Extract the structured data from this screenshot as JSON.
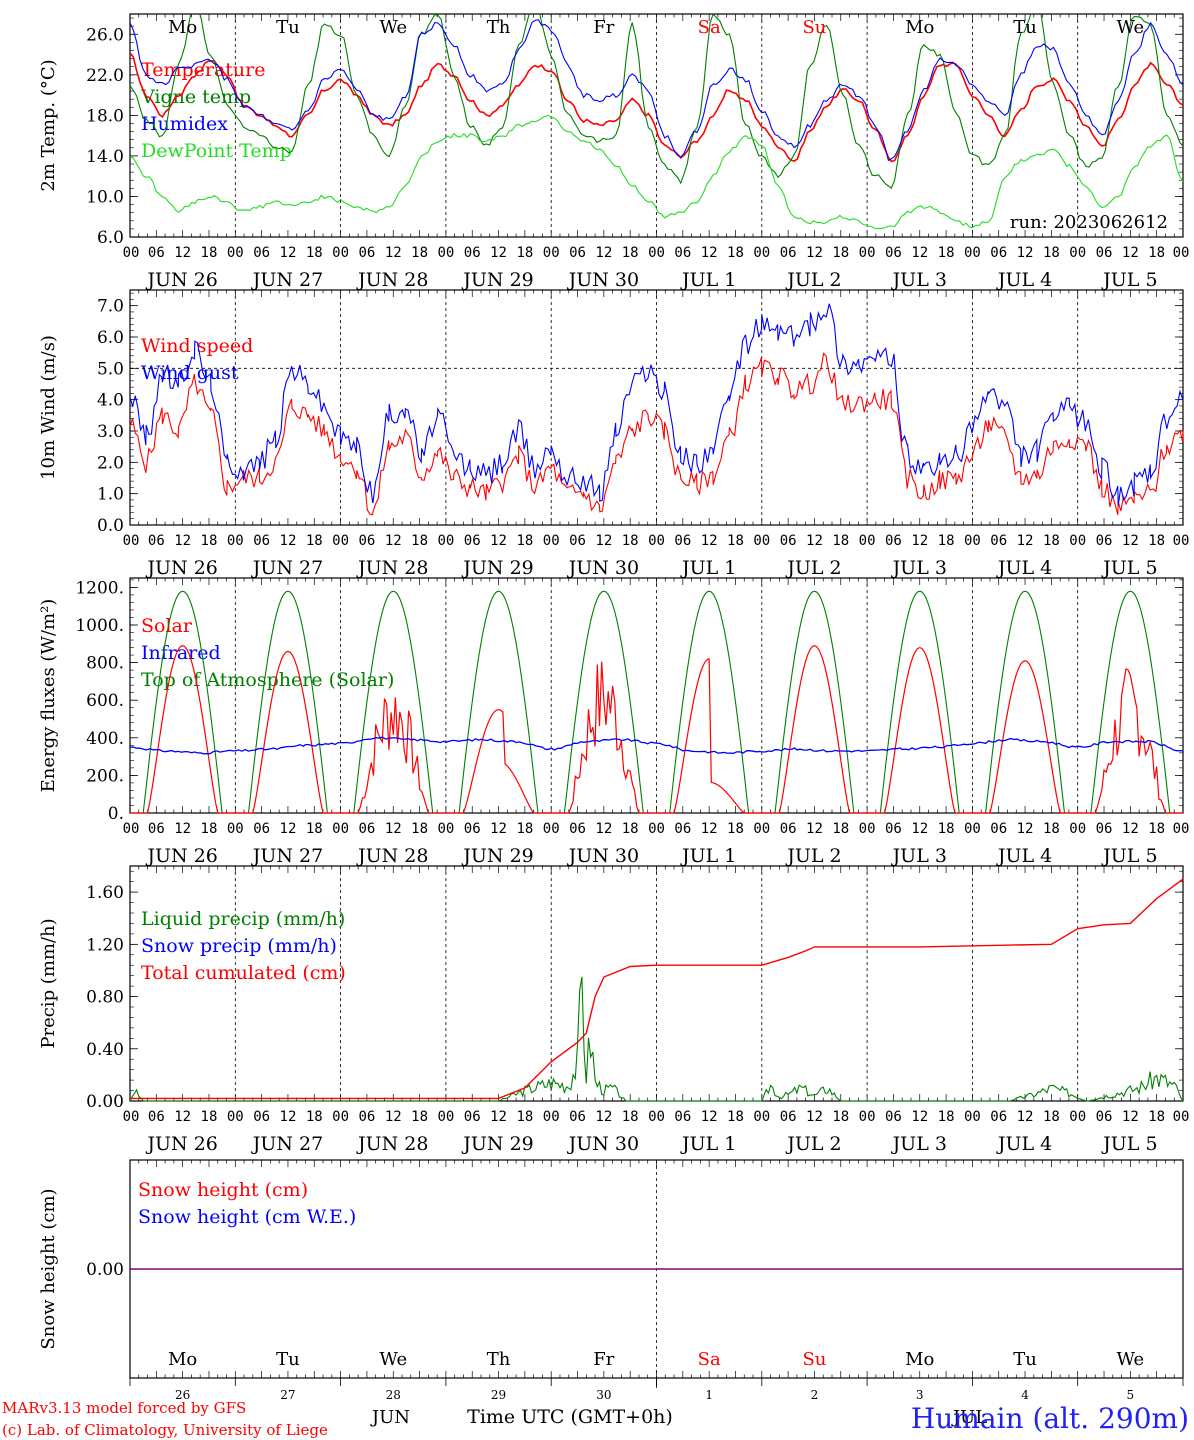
{
  "chart_data": [
    {
      "type": "line",
      "ylabel": "2m Temp. (°C)",
      "ylim": [
        6,
        28
      ],
      "yticks": [
        "6.0",
        "10.0",
        "14.0",
        "18.0",
        "22.0",
        "26.0"
      ],
      "legend": [
        {
          "label": "Temperature",
          "color": "#ff0000"
        },
        {
          "label": "Vigne temp",
          "color": "#008000"
        },
        {
          "label": "Humidex",
          "color": "#0000ff"
        },
        {
          "label": "DewPoint Temp",
          "color": "#22dd22"
        }
      ],
      "run_label": "run: 2023062612",
      "series": [
        {
          "name": "Temperature",
          "color": "#ff0000",
          "values": [
            24,
            20,
            18,
            20,
            22,
            23.5,
            22,
            19,
            18,
            17,
            16,
            18,
            20.5,
            21.5,
            20,
            18,
            17,
            18,
            21,
            23,
            22,
            19.5,
            18,
            19,
            21,
            23,
            22.5,
            19.5,
            17.5,
            17,
            17.5,
            19.5,
            18,
            15,
            14,
            15.5,
            18,
            20.5,
            19.5,
            17,
            15,
            13.5,
            16.5,
            19,
            20.5,
            19.5,
            16.5,
            13.5,
            16,
            20,
            23,
            23,
            20,
            18,
            16,
            18.5,
            21,
            21.5,
            19.5,
            17,
            15,
            17.5,
            21,
            23,
            21,
            19
          ]
        },
        {
          "name": "Vigne temp",
          "color": "#008000",
          "values": [
            21,
            17.5,
            16,
            23,
            29,
            24,
            19,
            17,
            16,
            15,
            14.5,
            21,
            27,
            26,
            20,
            16,
            14,
            19,
            26,
            28,
            22,
            17,
            15,
            17,
            25,
            29,
            24,
            18,
            16,
            15.5,
            16,
            27,
            17,
            13,
            11.5,
            17,
            28,
            26,
            17,
            14,
            12,
            14,
            23,
            27,
            20,
            15,
            12,
            11,
            18,
            25,
            24,
            18,
            14,
            13,
            16,
            26,
            29,
            21,
            16,
            13,
            14,
            21,
            28,
            27,
            18,
            15
          ]
        },
        {
          "name": "Humidex",
          "color": "#0000ff",
          "values": [
            27,
            22,
            21,
            22.5,
            23,
            23.5,
            21.5,
            19,
            18,
            17,
            16.5,
            18.5,
            21.5,
            22.5,
            20.5,
            18,
            17.5,
            20,
            26,
            27,
            25,
            22,
            20.5,
            21,
            24.5,
            27.5,
            26.5,
            23,
            20,
            19.5,
            20,
            22,
            20.5,
            16,
            14,
            16.5,
            21,
            22.5,
            21.5,
            18.5,
            16,
            15,
            17,
            19.5,
            21,
            20,
            17,
            13.5,
            16.5,
            20.5,
            23.5,
            23,
            21,
            19.5,
            18,
            22,
            25,
            24.5,
            21,
            18,
            16,
            19.5,
            24,
            27,
            24,
            21
          ]
        },
        {
          "name": "DewPoint Temp",
          "color": "#22dd22",
          "values": [
            14,
            12,
            10,
            8.5,
            9.5,
            10,
            9.5,
            8.5,
            9,
            9.5,
            9,
            9.5,
            10,
            9.5,
            9,
            8.5,
            9,
            11,
            14,
            15.5,
            16,
            16,
            15.5,
            16,
            17,
            17.5,
            18,
            16.5,
            15.5,
            14.5,
            13,
            11,
            9.5,
            8,
            8.5,
            9.5,
            12,
            14.5,
            16,
            15,
            11,
            8,
            7.5,
            7.5,
            8,
            7.5,
            7,
            7,
            8.5,
            9,
            8.5,
            7.5,
            7,
            7.5,
            12,
            13.5,
            14,
            14.5,
            13,
            11,
            9,
            10,
            13,
            15,
            16,
            11.5
          ]
        }
      ]
    },
    {
      "type": "line",
      "ylabel": "10m Wind (m/s)",
      "ylim": [
        0,
        7.5
      ],
      "yticks": [
        "0.0",
        "1.0",
        "2.0",
        "3.0",
        "4.0",
        "5.0",
        "6.0",
        "7.0"
      ],
      "reference_line": 5.0,
      "legend": [
        {
          "label": "Wind speed",
          "color": "#ff0000"
        },
        {
          "label": "Wind gust",
          "color": "#0000ff"
        }
      ],
      "series": [
        {
          "name": "Wind speed",
          "color": "#ff0000",
          "values": [
            3.2,
            2,
            3.5,
            3,
            4.5,
            3.5,
            1.2,
            1.5,
            1.5,
            2,
            3.8,
            3.5,
            3,
            2.2,
            1.8,
            0.4,
            2.5,
            2.8,
            1.6,
            2.3,
            1.5,
            1.2,
            1,
            1.4,
            2.2,
            1.2,
            1.8,
            1,
            1,
            0.5,
            2,
            3,
            3.5,
            3,
            1.5,
            1.3,
            1.6,
            2.8,
            4.5,
            5,
            4.8,
            4.3,
            4.5,
            5.2,
            3.8,
            3.9,
            4,
            4,
            1.5,
            1,
            1.4,
            1.5,
            2.2,
            3.2,
            2.8,
            1.5,
            1.6,
            2.5,
            2.8,
            2.6,
            1.2,
            0.5,
            0.8,
            1,
            2.5,
            3
          ]
        },
        {
          "name": "Wind gust",
          "color": "#0000ff",
          "values": [
            4.2,
            2.8,
            4.8,
            4.5,
            5.6,
            4.5,
            2,
            1.8,
            2,
            2.8,
            5,
            4.5,
            3.8,
            2.8,
            2.5,
            1,
            3.5,
            3.8,
            2.2,
            3.5,
            2.2,
            1.8,
            1.6,
            2,
            3,
            1.8,
            2.5,
            1.5,
            1.5,
            1,
            3,
            4.5,
            5,
            4.2,
            2.2,
            2,
            2.5,
            4,
            5.8,
            6.4,
            6.2,
            6,
            6.4,
            7,
            5.2,
            5.2,
            5.3,
            5.3,
            2.2,
            1.6,
            2,
            2.2,
            3,
            4.3,
            3.8,
            2.2,
            2.4,
            3.5,
            3.7,
            3.3,
            1.8,
            1,
            1.3,
            1.6,
            3.3,
            4
          ]
        }
      ]
    },
    {
      "type": "line",
      "ylabel": "Energy fluxes (W/m²)",
      "ylim": [
        0,
        1250
      ],
      "yticks": [
        "0.",
        "200.",
        "400.",
        "600.",
        "800.",
        "1000.",
        "1200."
      ],
      "legend": [
        {
          "label": "Solar",
          "color": "#ff0000"
        },
        {
          "label": "Infrared",
          "color": "#0000ff"
        },
        {
          "label": "Top of Atmosphere (Solar)",
          "color": "#008000"
        }
      ],
      "toa_peak": 1180,
      "solar_daily_peak": [
        890,
        860,
        770,
        550,
        870,
        820,
        890,
        880,
        810,
        800
      ],
      "infrared_approx": [
        350,
        330,
        320,
        330,
        340,
        360,
        370,
        400,
        390,
        380,
        390,
        380,
        340,
        380,
        390,
        370,
        330,
        320,
        330,
        340,
        330,
        330,
        340,
        350,
        370,
        390,
        380,
        350,
        380,
        380,
        330
      ]
    },
    {
      "type": "line",
      "ylabel": "Precip (mm/h)",
      "ylim": [
        0,
        1.8
      ],
      "yticks": [
        "0.00",
        "0.40",
        "0.80",
        "1.20",
        "1.60"
      ],
      "legend": [
        {
          "label": "Liquid precip (mm/h)",
          "color": "#008000"
        },
        {
          "label": "Snow precip (mm/h)",
          "color": "#0000ff"
        },
        {
          "label": "Total cumulated (cm)",
          "color": "#ff0000"
        }
      ],
      "series": [
        {
          "name": "Total cumulated (cm)",
          "color": "#ff0000",
          "x_hours": [
            0,
            84,
            90,
            96,
            102,
            104,
            106,
            108,
            114,
            120,
            144,
            150,
            154,
            156,
            180,
            210,
            216,
            222,
            228,
            234,
            240
          ],
          "values": [
            0.02,
            0.02,
            0.1,
            0.3,
            0.45,
            0.52,
            0.8,
            0.95,
            1.03,
            1.04,
            1.04,
            1.1,
            1.15,
            1.18,
            1.18,
            1.2,
            1.32,
            1.35,
            1.36,
            1.55,
            1.7
          ]
        },
        {
          "name": "Liquid precip (mm/h)",
          "color": "#008000",
          "x_hours": [
            0,
            1,
            3,
            84,
            90,
            96,
            100,
            102,
            103,
            104,
            105,
            106,
            108,
            110,
            113,
            144,
            146,
            148,
            150,
            153,
            156,
            159,
            162,
            200,
            206,
            210,
            214,
            218,
            230,
            234,
            238,
            240
          ],
          "values": [
            0,
            0.08,
            0,
            0,
            0.08,
            0.14,
            0.12,
            0.3,
            0.9,
            0.2,
            0.5,
            0.15,
            0.08,
            0.1,
            0,
            0,
            0.12,
            0.03,
            0.05,
            0.1,
            0.04,
            0.1,
            0,
            0,
            0.05,
            0.1,
            0.06,
            0,
            0.1,
            0.18,
            0.12,
            0
          ]
        }
      ]
    },
    {
      "type": "line",
      "ylabel": "Snow height (cm)",
      "ylim": [
        -1,
        1
      ],
      "yticks": [
        "0.00"
      ],
      "legend": [
        {
          "label": "Snow height (cm)",
          "color": "#ff0000"
        },
        {
          "label": "Snow height (cm W.E.)",
          "color": "#0000ff"
        }
      ],
      "series": [
        {
          "name": "Snow height (cm)",
          "color": "#800080",
          "values": [
            0,
            0
          ]
        }
      ]
    }
  ],
  "x_axis": {
    "hour_ticks": [
      "00",
      "06",
      "12",
      "18"
    ],
    "day_labels": [
      "JUN 26",
      "JUN 27",
      "JUN 28",
      "JUN 29",
      "JUN 30",
      "JUL  1",
      "JUL  2",
      "JUL  3",
      "JUL  4",
      "JUL  5"
    ],
    "weekdays": [
      "Mo",
      "Tu",
      "We",
      "Th",
      "Fr",
      "Sa",
      "Su",
      "Mo",
      "Tu",
      "We"
    ],
    "weekday_colors": [
      "#000000",
      "#000000",
      "#000000",
      "#000000",
      "#000000",
      "#ff0000",
      "#ff0000",
      "#000000",
      "#000000",
      "#000000"
    ],
    "day_numbers": [
      "26",
      "27",
      "28",
      "29",
      "30",
      "1",
      "2",
      "3",
      "4",
      "5"
    ],
    "month_labels": [
      "JUN",
      "JUL"
    ],
    "time_label": "Time UTC (GMT+0h)"
  },
  "footer": {
    "credit_line1": "MARv3.13 model forced by GFS",
    "credit_line2": "(c) Lab. of Climatology, University of Liege",
    "location": "Humain (alt. 290m)"
  }
}
